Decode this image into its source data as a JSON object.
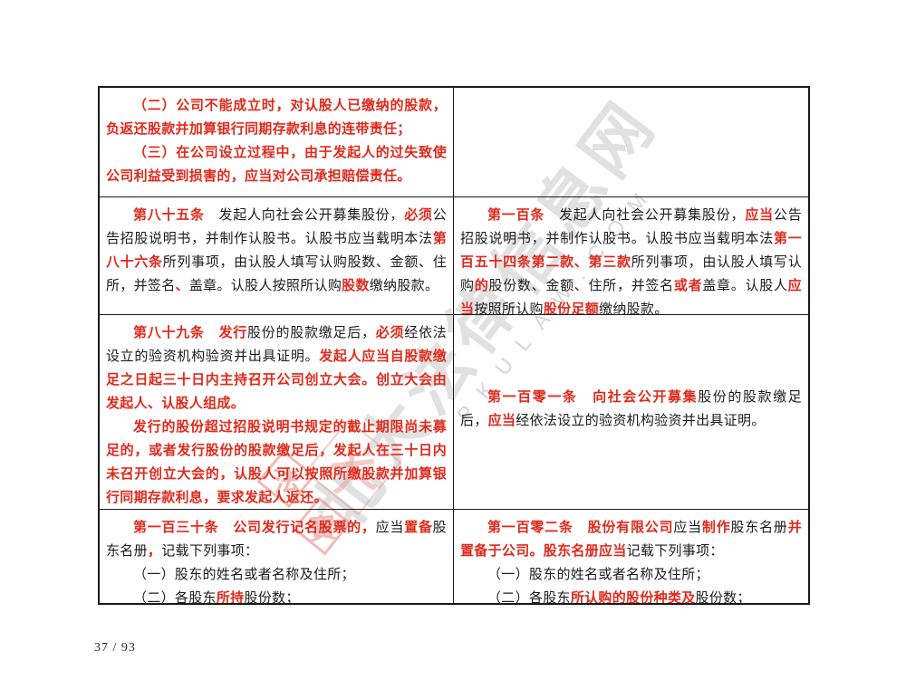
{
  "page": {
    "number_label": "37 / 93"
  },
  "colors": {
    "red": "#e02a1c",
    "text": "#1c1c1c",
    "border": "#1a1a1a",
    "watermark_gray": "#a9a9a9",
    "seal_pink": "#e4938a"
  },
  "watermark": {
    "cn_text": "北大法律信息网",
    "latin_text": "PKULAW.COM",
    "seal": {
      "char_top": "法",
      "char_bottom": "寶",
      "big_char": "大"
    }
  },
  "table": {
    "rows": [
      {
        "cells": [
          {
            "valign": "top",
            "paragraphs": [
              {
                "segments": [
                  {
                    "text": "（二）公司不能成立时，对认股人已缴纳的股款，负返还股款并加算银行同期存款利息的连带责任；",
                    "style": "red"
                  }
                ]
              },
              {
                "segments": [
                  {
                    "text": "（三）在公司设立过程中，由于发起人的过失致使公司利益受到损害的，应当对公司承担赔偿责任。",
                    "style": "red"
                  }
                ]
              }
            ]
          },
          {
            "valign": "top",
            "paragraphs": []
          }
        ]
      },
      {
        "cells": [
          {
            "valign": "top",
            "paragraphs": [
              {
                "segments": [
                  {
                    "text": "第八十五条",
                    "style": "red"
                  },
                  {
                    "text": "　发起人向社会公开募集股份，",
                    "style": "blk"
                  },
                  {
                    "text": "必须",
                    "style": "red"
                  },
                  {
                    "text": "公告招股说明书，并制作认股书。认股书应当载明本法",
                    "style": "blk"
                  },
                  {
                    "text": "第八十六条",
                    "style": "red"
                  },
                  {
                    "text": "所列事项，由认股人填写认购股数、金额、住所，并签名",
                    "style": "blk"
                  },
                  {
                    "text": "、",
                    "style": "red"
                  },
                  {
                    "text": "盖章。认股人按照所认购",
                    "style": "blk"
                  },
                  {
                    "text": "股数",
                    "style": "red"
                  },
                  {
                    "text": "缴纳股款。",
                    "style": "blk"
                  }
                ]
              }
            ]
          },
          {
            "valign": "top",
            "paragraphs": [
              {
                "segments": [
                  {
                    "text": "第一百条",
                    "style": "red"
                  },
                  {
                    "text": "　发起人向社会公开募集股份，",
                    "style": "blk"
                  },
                  {
                    "text": "应当",
                    "style": "red"
                  },
                  {
                    "text": "公告招股说明书，并制作认股书。认股书应当载明本法",
                    "style": "blk"
                  },
                  {
                    "text": "第一百五十四条第二款、第三款",
                    "style": "red"
                  },
                  {
                    "text": "所列事项，由认股人填写认购",
                    "style": "blk"
                  },
                  {
                    "text": "的",
                    "style": "red"
                  },
                  {
                    "text": "股份数、金额、住所，并签名",
                    "style": "blk"
                  },
                  {
                    "text": "或者",
                    "style": "red"
                  },
                  {
                    "text": "盖章。认股人",
                    "style": "blk"
                  },
                  {
                    "text": "应当",
                    "style": "red"
                  },
                  {
                    "text": "按照所认购",
                    "style": "blk"
                  },
                  {
                    "text": "股份足额",
                    "style": "red"
                  },
                  {
                    "text": "缴纳股款。",
                    "style": "blk"
                  }
                ]
              }
            ]
          }
        ]
      },
      {
        "cells": [
          {
            "valign": "top",
            "paragraphs": [
              {
                "segments": [
                  {
                    "text": "第八十九条",
                    "style": "red"
                  },
                  {
                    "text": "　",
                    "style": "blk"
                  },
                  {
                    "text": "发行",
                    "style": "red"
                  },
                  {
                    "text": "股份的股款缴足后，",
                    "style": "blk"
                  },
                  {
                    "text": "必须",
                    "style": "red"
                  },
                  {
                    "text": "经依法设立的验资机构验资并出具证明。",
                    "style": "blk"
                  },
                  {
                    "text": "发起人应当自股款缴足之日起三十日内主持召开公司创立大会。创立大会由发起人、认股人组成。",
                    "style": "red"
                  }
                ]
              },
              {
                "segments": [
                  {
                    "text": "发行的股份超过招股说明书规定的截止期限尚未募足的，或者发行股份的股款缴足后，发起人在三十日内未召开创立大会的，认股人可以按照所缴股款并加算银行同期存款利息，要求发起人返还。",
                    "style": "red"
                  }
                ]
              }
            ]
          },
          {
            "valign": "middle",
            "paragraphs": [
              {
                "segments": [
                  {
                    "text": "第一百零一条",
                    "style": "red"
                  },
                  {
                    "text": "　",
                    "style": "blk"
                  },
                  {
                    "text": "向社会公开募集",
                    "style": "red"
                  },
                  {
                    "text": "股份的股款缴足后，",
                    "style": "blk"
                  },
                  {
                    "text": "应当",
                    "style": "red"
                  },
                  {
                    "text": "经依法设立的验资机构验资并出具证明。",
                    "style": "blk"
                  }
                ]
              }
            ]
          }
        ]
      },
      {
        "cells": [
          {
            "valign": "top",
            "paragraphs": [
              {
                "segments": [
                  {
                    "text": "第一百三十条",
                    "style": "red"
                  },
                  {
                    "text": "　",
                    "style": "blk"
                  },
                  {
                    "text": "公司发行记名股票的，",
                    "style": "red"
                  },
                  {
                    "text": "应当",
                    "style": "blk"
                  },
                  {
                    "text": "置备",
                    "style": "red"
                  },
                  {
                    "text": "股东名册",
                    "style": "blk"
                  },
                  {
                    "text": "，",
                    "style": "red"
                  },
                  {
                    "text": "记载下列事项：",
                    "style": "blk"
                  }
                ]
              },
              {
                "segments": [
                  {
                    "text": "（一）股东的姓名或者名称及住所；",
                    "style": "blk"
                  }
                ]
              },
              {
                "segments": [
                  {
                    "text": "（二）各股东",
                    "style": "blk"
                  },
                  {
                    "text": "所持",
                    "style": "red"
                  },
                  {
                    "text": "股份数；",
                    "style": "blk"
                  }
                ]
              }
            ]
          },
          {
            "valign": "top",
            "paragraphs": [
              {
                "segments": [
                  {
                    "text": "第一百零二条",
                    "style": "red"
                  },
                  {
                    "text": "　",
                    "style": "blk"
                  },
                  {
                    "text": "股份有限公司",
                    "style": "red"
                  },
                  {
                    "text": "应当",
                    "style": "blk"
                  },
                  {
                    "text": "制作",
                    "style": "red"
                  },
                  {
                    "text": "股东名册",
                    "style": "blk"
                  },
                  {
                    "text": "并置备于公司。股东名册应当",
                    "style": "red"
                  },
                  {
                    "text": "记载下列事项：",
                    "style": "blk"
                  }
                ]
              },
              {
                "segments": [
                  {
                    "text": "（一）股东的姓名或者名称及住所；",
                    "style": "blk"
                  }
                ]
              },
              {
                "segments": [
                  {
                    "text": "（二）各股东",
                    "style": "blk"
                  },
                  {
                    "text": "所认购的股份种类及",
                    "style": "red"
                  },
                  {
                    "text": "股份数；",
                    "style": "blk"
                  }
                ]
              }
            ]
          }
        ]
      }
    ]
  }
}
